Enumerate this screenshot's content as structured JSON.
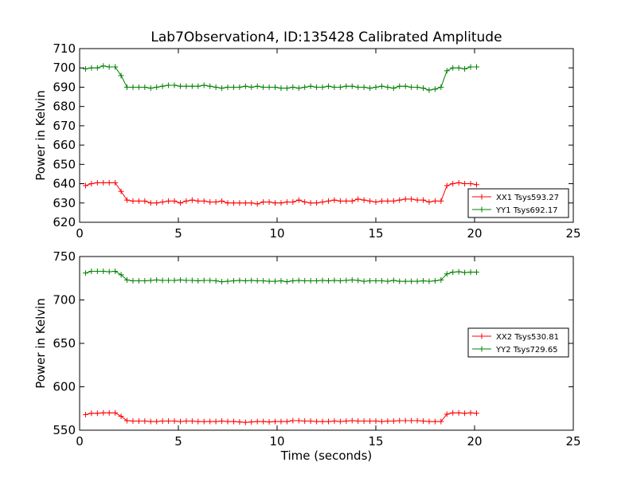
{
  "title": "Lab7Observation4, ID:135428 Calibrated Amplitude",
  "chart_data": [
    {
      "type": "line",
      "xlabel": "",
      "ylabel": "Power in Kelvin",
      "xlim": [
        0,
        25
      ],
      "ylim": [
        620,
        710
      ],
      "xticks": [
        "0",
        "5",
        "10",
        "15",
        "20",
        "25"
      ],
      "yticks": [
        "620",
        "630",
        "640",
        "650",
        "660",
        "670",
        "680",
        "690",
        "700",
        "710"
      ],
      "legend_position": "lower-right",
      "x": [
        0.3,
        0.6,
        0.9,
        1.2,
        1.5,
        1.8,
        2.1,
        2.4,
        2.7,
        3.0,
        3.3,
        3.6,
        3.9,
        4.2,
        4.5,
        4.8,
        5.1,
        5.4,
        5.7,
        6.0,
        6.3,
        6.6,
        6.9,
        7.2,
        7.5,
        7.8,
        8.1,
        8.4,
        8.7,
        9.0,
        9.3,
        9.6,
        9.9,
        10.2,
        10.5,
        10.8,
        11.1,
        11.4,
        11.7,
        12.0,
        12.3,
        12.6,
        12.9,
        13.2,
        13.5,
        13.8,
        14.1,
        14.4,
        14.7,
        15.0,
        15.3,
        15.6,
        15.9,
        16.2,
        16.5,
        16.8,
        17.1,
        17.4,
        17.7,
        18.0,
        18.3,
        18.6,
        18.9,
        19.2,
        19.5,
        19.8,
        20.1
      ],
      "series": [
        {
          "name": "XX1 Tsys593.27",
          "color": "#ff0000",
          "values": [
            639.0,
            640.0,
            640.5,
            640.5,
            640.5,
            640.5,
            636.0,
            631.5,
            631.0,
            631.0,
            631.0,
            630.0,
            630.0,
            630.5,
            631.0,
            631.0,
            630.0,
            631.0,
            631.5,
            631.0,
            631.0,
            630.5,
            630.5,
            631.0,
            630.0,
            630.0,
            630.0,
            630.0,
            630.0,
            629.5,
            630.5,
            630.5,
            630.0,
            630.0,
            630.5,
            630.5,
            631.5,
            630.5,
            630.0,
            630.0,
            630.5,
            631.0,
            631.5,
            631.0,
            631.0,
            631.0,
            632.0,
            631.5,
            631.0,
            630.5,
            631.0,
            631.0,
            631.0,
            631.5,
            632.0,
            632.0,
            631.5,
            631.5,
            630.5,
            631.0,
            631.0,
            639.0,
            640.0,
            640.5,
            640.0,
            640.0,
            639.5
          ]
        },
        {
          "name": "YY1 Tsys692.17",
          "color": "#008000",
          "values": [
            699.5,
            700.0,
            700.0,
            701.0,
            700.5,
            700.5,
            696.0,
            690.0,
            690.0,
            690.0,
            690.0,
            689.5,
            690.0,
            690.5,
            691.0,
            691.0,
            690.5,
            690.5,
            690.5,
            690.5,
            691.0,
            690.5,
            690.0,
            689.5,
            690.0,
            690.0,
            690.0,
            690.5,
            690.0,
            690.5,
            690.0,
            690.0,
            690.0,
            689.5,
            689.5,
            690.0,
            689.5,
            690.0,
            690.5,
            690.0,
            690.0,
            690.5,
            690.0,
            690.0,
            690.5,
            690.5,
            690.0,
            690.0,
            689.5,
            690.0,
            690.5,
            690.0,
            689.5,
            690.5,
            690.5,
            690.0,
            690.0,
            689.5,
            688.5,
            689.0,
            690.0,
            698.5,
            700.0,
            700.0,
            699.5,
            700.5,
            700.5
          ]
        }
      ]
    },
    {
      "type": "line",
      "xlabel": "Time (seconds)",
      "ylabel": "Power in Kelvin",
      "xlim": [
        0,
        25
      ],
      "ylim": [
        550,
        750
      ],
      "xticks": [
        "0",
        "5",
        "10",
        "15",
        "20",
        "25"
      ],
      "yticks": [
        "550",
        "600",
        "650",
        "700",
        "750"
      ],
      "legend_position": "center-right",
      "x": [
        0.3,
        0.6,
        0.9,
        1.2,
        1.5,
        1.8,
        2.1,
        2.4,
        2.7,
        3.0,
        3.3,
        3.6,
        3.9,
        4.2,
        4.5,
        4.8,
        5.1,
        5.4,
        5.7,
        6.0,
        6.3,
        6.6,
        6.9,
        7.2,
        7.5,
        7.8,
        8.1,
        8.4,
        8.7,
        9.0,
        9.3,
        9.6,
        9.9,
        10.2,
        10.5,
        10.8,
        11.1,
        11.4,
        11.7,
        12.0,
        12.3,
        12.6,
        12.9,
        13.2,
        13.5,
        13.8,
        14.1,
        14.4,
        14.7,
        15.0,
        15.3,
        15.6,
        15.9,
        16.2,
        16.5,
        16.8,
        17.1,
        17.4,
        17.7,
        18.0,
        18.3,
        18.6,
        18.9,
        19.2,
        19.5,
        19.8,
        20.1
      ],
      "series": [
        {
          "name": "XX2 Tsys530.81",
          "color": "#ff0000",
          "values": [
            568.0,
            569.5,
            569.5,
            570.0,
            570.0,
            570.0,
            566.0,
            561.0,
            560.5,
            560.5,
            560.5,
            560.0,
            560.0,
            560.5,
            560.5,
            560.5,
            560.0,
            560.5,
            560.5,
            560.0,
            560.0,
            560.0,
            560.0,
            560.5,
            560.0,
            560.0,
            559.5,
            559.0,
            559.5,
            560.0,
            560.0,
            559.5,
            560.0,
            560.0,
            560.0,
            561.0,
            561.0,
            560.5,
            560.5,
            560.0,
            560.0,
            560.0,
            560.5,
            560.0,
            560.5,
            561.0,
            560.5,
            560.5,
            560.5,
            560.5,
            560.0,
            560.5,
            560.5,
            561.0,
            561.0,
            561.0,
            561.0,
            560.5,
            560.0,
            560.0,
            560.0,
            568.5,
            570.0,
            570.0,
            569.5,
            570.0,
            569.5
          ]
        },
        {
          "name": "YY2 Tsys729.65",
          "color": "#008000",
          "values": [
            731.0,
            733.0,
            733.0,
            733.0,
            732.5,
            733.0,
            729.0,
            723.0,
            722.0,
            722.0,
            722.0,
            722.5,
            723.0,
            722.5,
            722.5,
            722.5,
            723.0,
            722.5,
            722.5,
            722.0,
            722.5,
            722.5,
            722.0,
            721.0,
            721.5,
            722.0,
            722.5,
            722.0,
            722.5,
            722.0,
            722.0,
            721.5,
            721.5,
            722.0,
            721.0,
            722.0,
            722.5,
            722.0,
            722.0,
            722.0,
            722.5,
            722.0,
            722.5,
            722.0,
            722.5,
            723.0,
            722.5,
            721.5,
            722.0,
            722.0,
            722.0,
            721.5,
            722.5,
            721.5,
            721.5,
            721.5,
            721.5,
            722.0,
            721.5,
            722.0,
            723.0,
            730.0,
            732.0,
            732.5,
            731.5,
            732.0,
            732.0
          ]
        }
      ]
    }
  ]
}
